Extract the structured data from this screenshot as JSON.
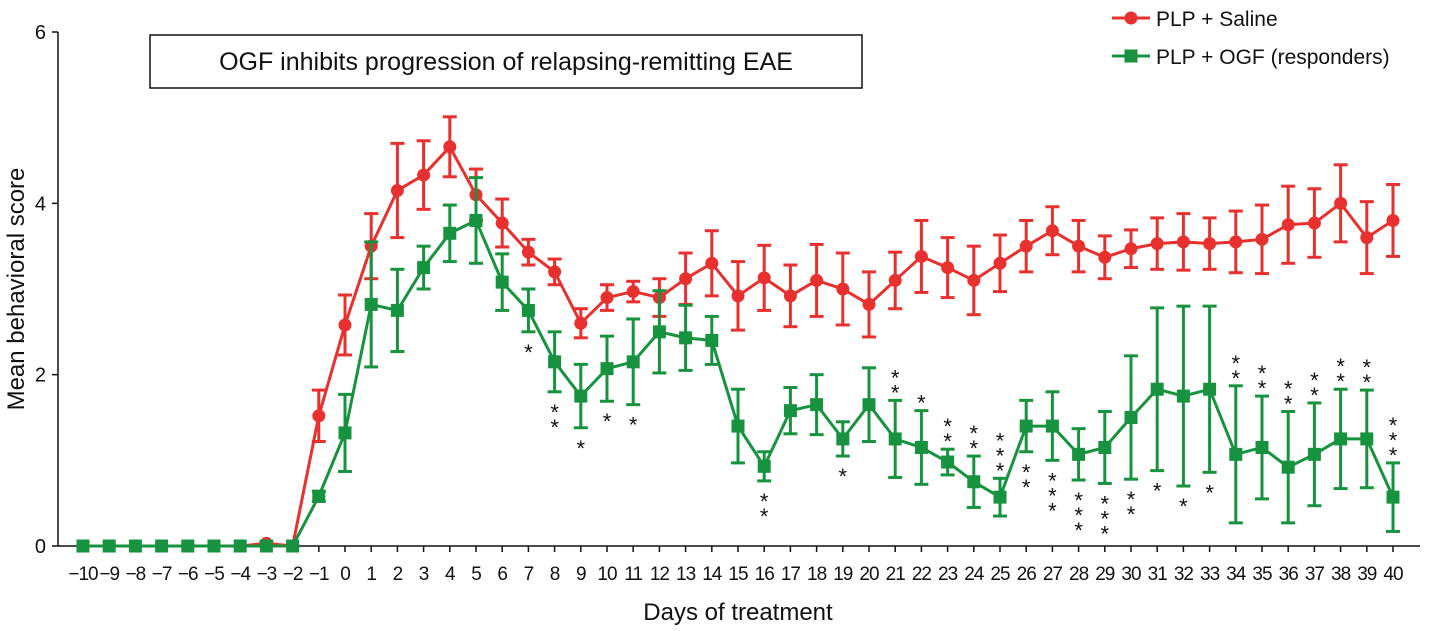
{
  "chart_data": {
    "type": "line",
    "title": "OGF inhibits progression of relapsing-remitting EAE",
    "x_label": "Days of treatment",
    "y_label": "Mean behavioral score",
    "categories": [
      "−10",
      "−9",
      "−8",
      "−7",
      "−6",
      "−5",
      "−4",
      "−3",
      "−2",
      "−1",
      "0",
      "1",
      "2",
      "3",
      "4",
      "5",
      "6",
      "7",
      "8",
      "9",
      "10",
      "11",
      "12",
      "13",
      "14",
      "15",
      "16",
      "17",
      "18",
      "19",
      "20",
      "21",
      "22",
      "23",
      "24",
      "25",
      "26",
      "27",
      "28",
      "29",
      "30",
      "31",
      "32",
      "33",
      "34",
      "35",
      "36",
      "37",
      "38",
      "39",
      "40"
    ],
    "ylim": [
      0,
      6
    ],
    "yticks": [
      0,
      2,
      4,
      6
    ],
    "legend_position": "upper right",
    "series": [
      {
        "name": "PLP + Saline",
        "color": "#e8312f",
        "marker": "circle",
        "values": [
          0,
          0,
          0,
          0,
          0,
          0,
          0,
          0.03,
          0,
          1.52,
          2.58,
          3.5,
          4.15,
          4.33,
          4.66,
          4.1,
          3.77,
          3.43,
          3.2,
          2.6,
          2.9,
          2.97,
          2.9,
          3.12,
          3.3,
          2.92,
          3.13,
          2.92,
          3.1,
          3.0,
          2.82,
          3.1,
          3.38,
          3.25,
          3.1,
          3.3,
          3.5,
          3.68,
          3.5,
          3.37,
          3.47,
          3.53,
          3.55,
          3.53,
          3.55,
          3.58,
          3.75,
          3.77,
          4.0,
          3.6,
          3.8
        ],
        "errors": [
          0,
          0,
          0,
          0,
          0,
          0,
          0,
          0.02,
          0,
          0.3,
          0.35,
          0.38,
          0.55,
          0.4,
          0.35,
          0.3,
          0.28,
          0.15,
          0.15,
          0.17,
          0.15,
          0.12,
          0.22,
          0.3,
          0.38,
          0.4,
          0.38,
          0.36,
          0.42,
          0.42,
          0.38,
          0.33,
          0.42,
          0.35,
          0.4,
          0.33,
          0.3,
          0.28,
          0.3,
          0.25,
          0.22,
          0.3,
          0.33,
          0.3,
          0.36,
          0.4,
          0.45,
          0.4,
          0.45,
          0.42,
          0.42
        ]
      },
      {
        "name": "PLP + OGF (responders)",
        "color": "#17933f",
        "marker": "square",
        "values": [
          0,
          0,
          0,
          0,
          0,
          0,
          0,
          0,
          0,
          0.58,
          1.32,
          2.82,
          2.75,
          3.25,
          3.65,
          3.8,
          3.08,
          2.75,
          2.15,
          1.75,
          2.07,
          2.15,
          2.5,
          2.43,
          2.4,
          1.4,
          0.93,
          1.58,
          1.65,
          1.25,
          1.65,
          1.25,
          1.15,
          0.98,
          0.75,
          0.57,
          1.4,
          1.4,
          1.07,
          1.15,
          1.5,
          1.83,
          1.75,
          1.83,
          1.07,
          1.15,
          0.92,
          1.07,
          1.25,
          1.25,
          0.57
        ],
        "errors": [
          0,
          0,
          0,
          0,
          0,
          0,
          0,
          0,
          0,
          0.06,
          0.45,
          0.73,
          0.48,
          0.25,
          0.33,
          0.5,
          0.33,
          0.25,
          0.35,
          0.37,
          0.38,
          0.5,
          0.48,
          0.38,
          0.28,
          0.43,
          0.17,
          0.27,
          0.35,
          0.2,
          0.43,
          0.45,
          0.43,
          0.15,
          0.3,
          0.22,
          0.3,
          0.4,
          0.3,
          0.42,
          0.72,
          0.95,
          1.05,
          0.97,
          0.8,
          0.6,
          0.65,
          0.6,
          0.58,
          0.57,
          0.4
        ]
      }
    ],
    "significance": [
      null,
      null,
      null,
      null,
      null,
      null,
      null,
      null,
      null,
      null,
      null,
      null,
      null,
      null,
      null,
      null,
      null,
      {
        "text": "*",
        "side": "below"
      },
      {
        "text": "**",
        "side": "below"
      },
      {
        "text": "*",
        "side": "below"
      },
      {
        "text": "*",
        "side": "below"
      },
      {
        "text": "*",
        "side": "below"
      },
      null,
      null,
      null,
      null,
      {
        "text": "**",
        "side": "below"
      },
      null,
      null,
      {
        "text": "*",
        "side": "below"
      },
      null,
      {
        "text": "**",
        "side": "above"
      },
      {
        "text": "*",
        "side": "above"
      },
      {
        "text": "**",
        "side": "above"
      },
      {
        "text": "**",
        "side": "above"
      },
      {
        "text": "***",
        "side": "above"
      },
      {
        "text": "**",
        "side": "below"
      },
      {
        "text": "***",
        "side": "below"
      },
      {
        "text": "***",
        "side": "below"
      },
      {
        "text": "***",
        "side": "below"
      },
      {
        "text": "**",
        "side": "below"
      },
      {
        "text": "*",
        "side": "below"
      },
      {
        "text": "*",
        "side": "below"
      },
      {
        "text": "*",
        "side": "below"
      },
      {
        "text": "**",
        "side": "above"
      },
      {
        "text": "**",
        "side": "above"
      },
      {
        "text": "**",
        "side": "above"
      },
      {
        "text": "**",
        "side": "above"
      },
      {
        "text": "**",
        "side": "above"
      },
      {
        "text": "**",
        "side": "above"
      },
      {
        "text": "***",
        "side": "above"
      }
    ]
  }
}
